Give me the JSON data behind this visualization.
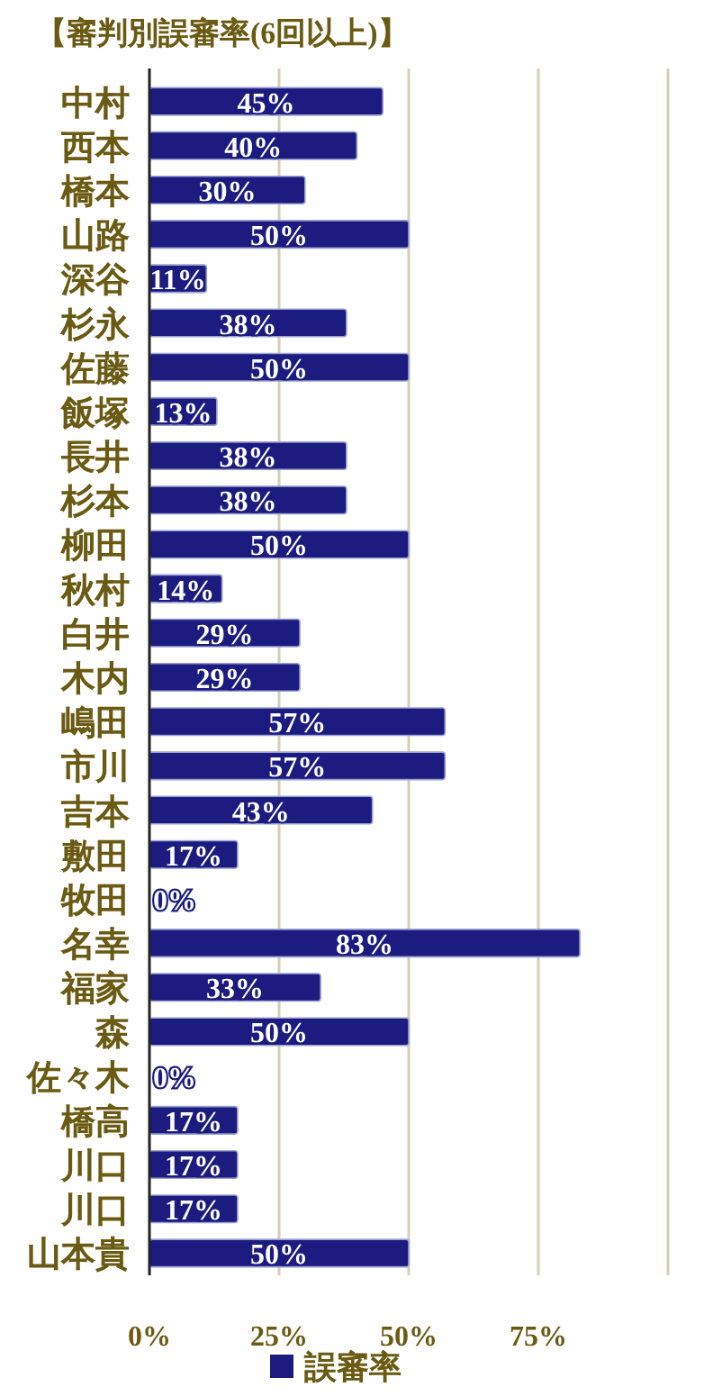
{
  "chart_data": {
    "type": "bar",
    "orientation": "horizontal",
    "title": "【審判別誤審率(6回以上)】",
    "categories": [
      "中村",
      "西本",
      "橋本",
      "山路",
      "深谷",
      "杉永",
      "佐藤",
      "飯塚",
      "長井",
      "杉本",
      "柳田",
      "秋村",
      "白井",
      "木内",
      "嶋田",
      "市川",
      "吉本",
      "敷田",
      "牧田",
      "名幸",
      "福家",
      "森",
      "佐々木",
      "橋高",
      "川口",
      "川口",
      "山本貴"
    ],
    "series": [
      {
        "name": "誤審率",
        "color": "#1b1b80",
        "values": [
          45,
          40,
          30,
          50,
          11,
          38,
          50,
          13,
          38,
          38,
          50,
          14,
          29,
          29,
          57,
          57,
          43,
          17,
          0,
          83,
          33,
          50,
          0,
          17,
          17,
          17,
          50
        ],
        "value_labels": [
          "45%",
          "40%",
          "30%",
          "50%",
          "11%",
          "38%",
          "50%",
          "13%",
          "38%",
          "38%",
          "50%",
          "14%",
          "29%",
          "29%",
          "57%",
          "57%",
          "43%",
          "17%",
          "0%",
          "83%",
          "33%",
          "50%",
          "0%",
          "17%",
          "17%",
          "17%",
          "50%"
        ]
      }
    ],
    "xlim": [
      0,
      100
    ],
    "xticks": [
      {
        "value": 0,
        "label": "0%"
      },
      {
        "value": 25,
        "label": "25%"
      },
      {
        "value": 50,
        "label": "50%"
      },
      {
        "value": 75,
        "label": "75%"
      },
      {
        "value": 100,
        "label": null
      }
    ],
    "grid": "x",
    "legend": "bottom"
  }
}
